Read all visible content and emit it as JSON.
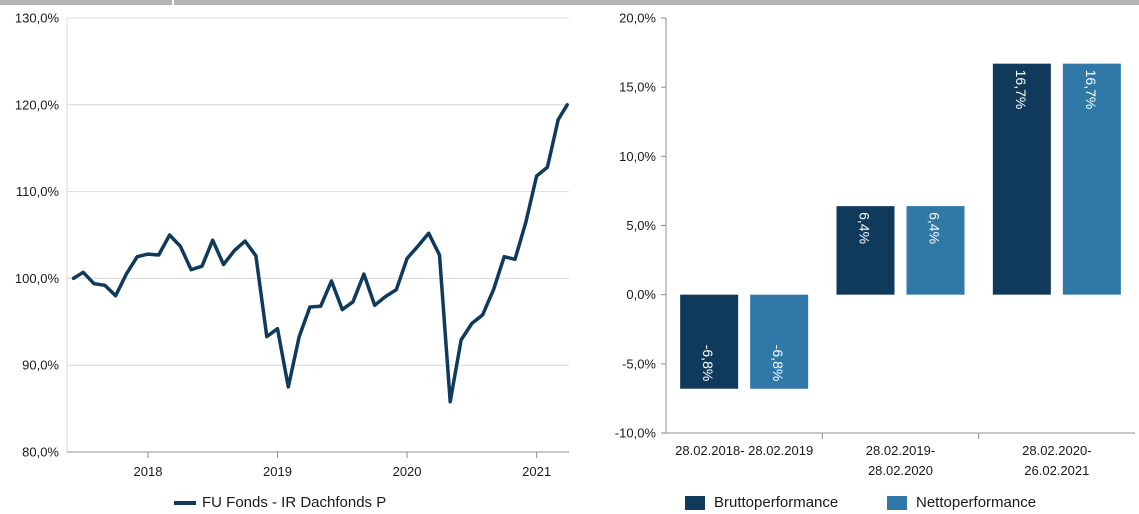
{
  "chart_data": [
    {
      "type": "line",
      "ylim": [
        80,
        130
      ],
      "y_ticks": [
        "80,0%",
        "90,0%",
        "100,0%",
        "110,0%",
        "120,0%",
        "130,0%"
      ],
      "x_ticks": [
        "2018",
        "2019",
        "2020",
        "2021"
      ],
      "xlim": [
        2017.375,
        2021.25
      ],
      "grid": true,
      "legend_position": "bottom",
      "series": [
        {
          "name": "FU Fonds - IR Dachfonds P",
          "color": "#0f3a5c",
          "points": [
            [
              2017.425,
              100.0
            ],
            [
              2017.5,
              100.7
            ],
            [
              2017.583,
              99.4
            ],
            [
              2017.667,
              99.2
            ],
            [
              2017.75,
              98.0
            ],
            [
              2017.833,
              100.5
            ],
            [
              2017.917,
              102.5
            ],
            [
              2018.0,
              102.8
            ],
            [
              2018.083,
              102.7
            ],
            [
              2018.167,
              105.0
            ],
            [
              2018.25,
              103.7
            ],
            [
              2018.333,
              101.0
            ],
            [
              2018.417,
              101.4
            ],
            [
              2018.5,
              104.4
            ],
            [
              2018.583,
              101.6
            ],
            [
              2018.667,
              103.2
            ],
            [
              2018.75,
              104.3
            ],
            [
              2018.833,
              102.6
            ],
            [
              2018.917,
              93.3
            ],
            [
              2019.0,
              94.2
            ],
            [
              2019.083,
              87.5
            ],
            [
              2019.167,
              93.3
            ],
            [
              2019.25,
              96.7
            ],
            [
              2019.333,
              96.8
            ],
            [
              2019.417,
              99.7
            ],
            [
              2019.5,
              96.4
            ],
            [
              2019.583,
              97.3
            ],
            [
              2019.667,
              100.5
            ],
            [
              2019.75,
              96.9
            ],
            [
              2019.833,
              97.9
            ],
            [
              2019.917,
              98.7
            ],
            [
              2020.0,
              102.3
            ],
            [
              2020.083,
              103.7
            ],
            [
              2020.167,
              105.2
            ],
            [
              2020.25,
              102.7
            ],
            [
              2020.333,
              85.8
            ],
            [
              2020.417,
              92.9
            ],
            [
              2020.5,
              94.8
            ],
            [
              2020.583,
              95.8
            ],
            [
              2020.667,
              98.7
            ],
            [
              2020.75,
              102.5
            ],
            [
              2020.833,
              102.2
            ],
            [
              2020.917,
              106.5
            ],
            [
              2021.0,
              111.8
            ],
            [
              2021.083,
              112.8
            ],
            [
              2021.167,
              118.3
            ],
            [
              2021.236,
              120.0
            ]
          ]
        }
      ]
    },
    {
      "type": "bar",
      "ylim": [
        -10,
        20
      ],
      "y_ticks": [
        "-10,0%",
        "-5,0%",
        "0,0%",
        "5,0%",
        "10,0%",
        "15,0%",
        "20,0%"
      ],
      "categories": [
        "28.02.2018- 28.02.2019",
        "28.02.2019-\n28.02.2020",
        "28.02.2020-\n26.02.2021"
      ],
      "category_lines": [
        [
          "28.02.2018- 28.02.2019"
        ],
        [
          "28.02.2019-",
          "28.02.2020"
        ],
        [
          "28.02.2020-",
          "26.02.2021"
        ]
      ],
      "legend_position": "bottom",
      "grid": false,
      "series": [
        {
          "name": "Bruttoperformance",
          "color": "#0f3a5c",
          "values": [
            -6.8,
            6.4,
            16.7
          ],
          "labels": [
            "-6,8%",
            "6,4%",
            "16,7%"
          ]
        },
        {
          "name": "Nettoperformance",
          "color": "#2f78a8",
          "values": [
            -6.8,
            6.4,
            16.7
          ],
          "labels": [
            "-6,8%",
            "6,4%",
            "16,7%"
          ]
        }
      ]
    }
  ]
}
